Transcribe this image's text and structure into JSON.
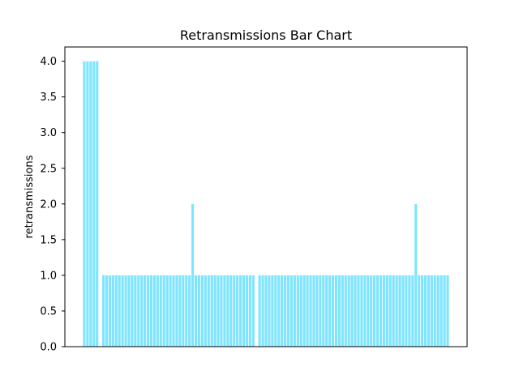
{
  "chart_data": {
    "type": "bar",
    "title": "Retransmissions Bar Chart",
    "xlabel": "",
    "ylabel": "retransmissions",
    "ylim": [
      0,
      4.2
    ],
    "yticks": [
      "0.0",
      "0.5",
      "1.0",
      "1.5",
      "2.0",
      "2.5",
      "3.0",
      "3.5",
      "4.0"
    ],
    "grid": false,
    "bar_color": "#7fe5ff",
    "values": [
      4,
      4,
      4,
      4,
      4,
      0,
      1,
      1,
      1,
      1,
      1,
      1,
      1,
      1,
      1,
      1,
      1,
      1,
      1,
      1,
      1,
      1,
      1,
      1,
      1,
      1,
      1,
      1,
      1,
      1,
      1,
      1,
      1,
      1,
      2,
      1,
      1,
      1,
      1,
      1,
      1,
      1,
      1,
      1,
      1,
      1,
      1,
      1,
      1,
      1,
      1,
      1,
      1,
      1,
      0,
      1,
      1,
      1,
      1,
      1,
      1,
      1,
      1,
      1,
      1,
      1,
      1,
      1,
      1,
      1,
      1,
      1,
      1,
      1,
      1,
      1,
      1,
      1,
      1,
      1,
      1,
      1,
      1,
      1,
      1,
      1,
      1,
      1,
      1,
      1,
      1,
      1,
      1,
      1,
      1,
      1,
      1,
      1,
      1,
      1,
      1,
      1,
      1,
      1,
      2,
      1,
      1,
      1,
      1,
      1,
      1,
      1,
      1,
      1,
      1
    ]
  }
}
